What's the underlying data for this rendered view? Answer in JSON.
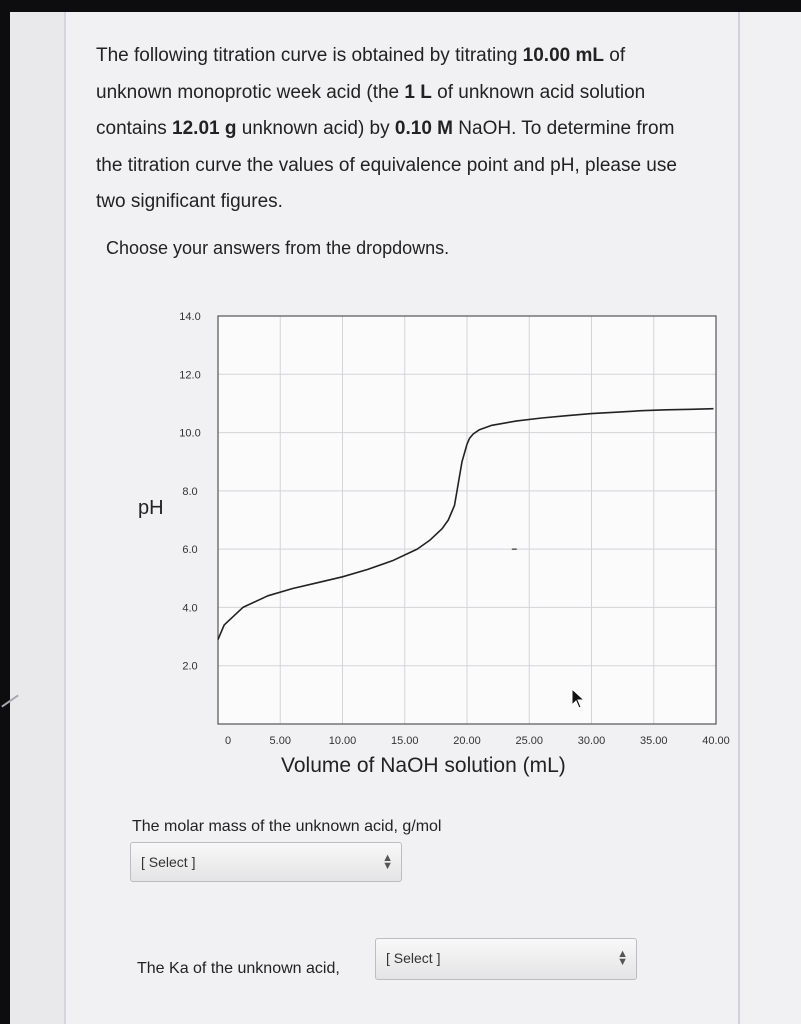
{
  "question": {
    "l1_a": "The following titration curve is obtained by titrating ",
    "l1_b": "10.00 mL",
    "l1_c": " of",
    "l2_a": "unknown monoprotic week acid (the ",
    "l2_b": "1 L",
    "l2_c": " of unknown acid solution",
    "l3_a": "contains ",
    "l3_b": "12.01 g",
    "l3_c": " unknown acid) by ",
    "l3_d": "0.10 M",
    "l3_e": " NaOH.  To determine from",
    "l4": "the titration curve the values of equivalence point and pH, please use",
    "l5": "two significant figures."
  },
  "prompt": "Choose your answers from the dropdowns.",
  "chart_data": {
    "type": "line",
    "xlabel": "Volume of NaOH solution (mL)",
    "ylabel": "pH",
    "xlim": [
      0,
      40
    ],
    "ylim": [
      0,
      14
    ],
    "grid": true,
    "x_ticks": [
      "0",
      "5.00",
      "10.00",
      "15.00",
      "20.00",
      "25.00",
      "30.00",
      "35.00",
      "40.00"
    ],
    "y_ticks": [
      "14.0",
      "12.0",
      "10.0",
      "8.0",
      "6.0",
      "4.0",
      "2.0"
    ],
    "series": [
      {
        "x": [
          0,
          0.5,
          2,
          4,
          6,
          8,
          10,
          12,
          14,
          16,
          17,
          18,
          18.5,
          19,
          19.2,
          19.4,
          19.6,
          19.8,
          20,
          20.2,
          20.5,
          21,
          22,
          24,
          26,
          28,
          30,
          32,
          34,
          36,
          38,
          39.8
        ],
        "y": [
          2.9,
          3.4,
          4.0,
          4.4,
          4.65,
          4.85,
          5.05,
          5.3,
          5.6,
          6.0,
          6.3,
          6.7,
          7.0,
          7.5,
          8.0,
          8.5,
          9.0,
          9.3,
          9.6,
          9.8,
          9.95,
          10.1,
          10.25,
          10.4,
          10.5,
          10.58,
          10.65,
          10.7,
          10.75,
          10.78,
          10.8,
          10.82
        ]
      }
    ]
  },
  "q_molar_mass": {
    "label": "The molar mass of the unknown acid, g/mol",
    "select_value": "[ Select ]"
  },
  "q_ka": {
    "label": "The Ka of the unknown acid,",
    "select_value": "[ Select ]"
  },
  "colors": {
    "curve": "#222222",
    "grid": "#d4d4d8",
    "frame": "#555555",
    "page": "#f1f1f3"
  }
}
